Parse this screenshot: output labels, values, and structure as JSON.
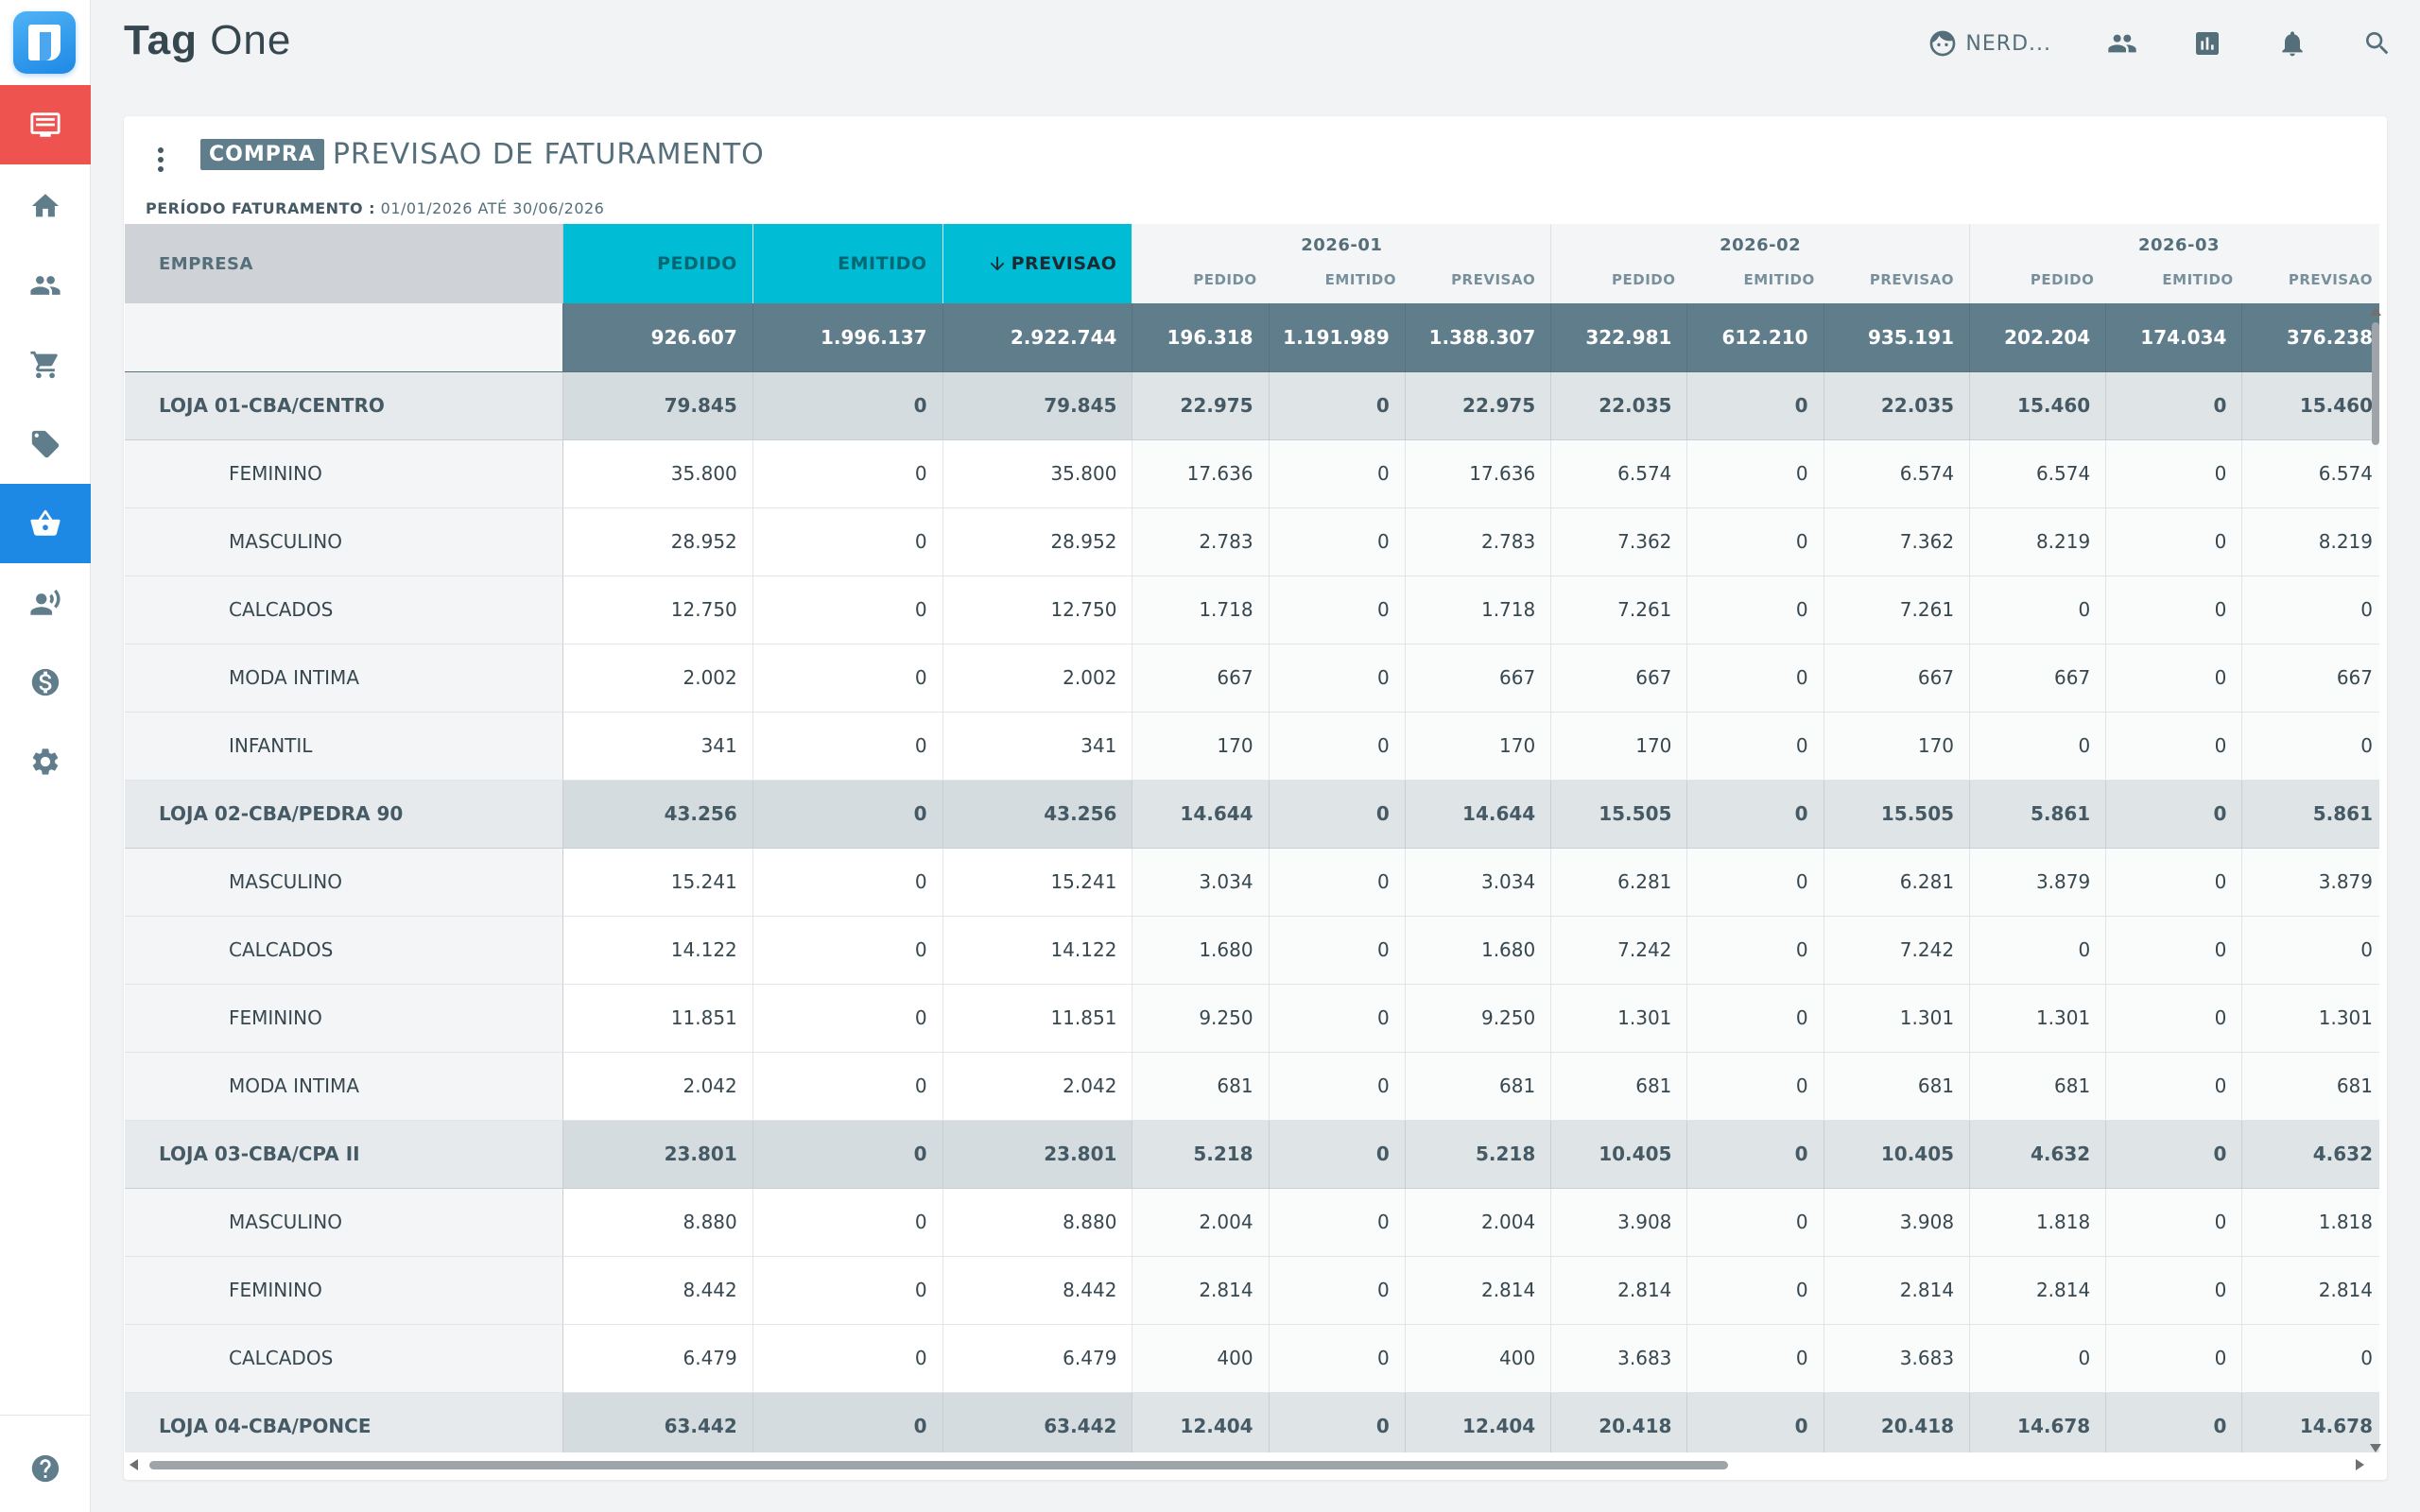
{
  "app": {
    "title_bold": "Tag",
    "title_light": "One"
  },
  "header": {
    "user_label": "NERD...",
    "icons": [
      "user-face-icon",
      "people-icon",
      "chart-icon",
      "bell-icon",
      "search-icon"
    ]
  },
  "sidebar": {
    "items": [
      {
        "icon": "monitor-icon"
      },
      {
        "icon": "home-icon"
      },
      {
        "icon": "people-icon"
      },
      {
        "icon": "cart-icon"
      },
      {
        "icon": "tag-icon"
      },
      {
        "icon": "basket-icon"
      },
      {
        "icon": "speaker-person-icon"
      },
      {
        "icon": "dollar-icon"
      },
      {
        "icon": "gear-icon"
      },
      {
        "icon": "help-icon"
      }
    ]
  },
  "card": {
    "badge": "COMPRA",
    "title": "PREVISAO DE FATURAMENTO",
    "period_label": "PERÍODO FATURAMENTO :",
    "period_value": "01/01/2026 ATÉ 30/06/2026"
  },
  "table": {
    "empresa_header": "EMPRESA",
    "total_headers": [
      "PEDIDO",
      "EMITIDO",
      "PREVISAO"
    ],
    "sub_headers": [
      "PEDIDO",
      "EMITIDO",
      "PREVISAO"
    ],
    "months": [
      "2026-01",
      "2026-02",
      "2026-03"
    ],
    "total_row": [
      "926.607",
      "1.996.137",
      "2.922.744",
      "196.318",
      "1.191.989",
      "1.388.307",
      "322.981",
      "612.210",
      "935.191",
      "202.204",
      "174.034",
      "376.238"
    ],
    "rows": [
      {
        "type": "store",
        "name": "LOJA 01-CBA/CENTRO",
        "values": [
          "79.845",
          "0",
          "79.845",
          "22.975",
          "0",
          "22.975",
          "22.035",
          "0",
          "22.035",
          "15.460",
          "0",
          "15.460"
        ]
      },
      {
        "type": "item",
        "name": "FEMININO",
        "values": [
          "35.800",
          "0",
          "35.800",
          "17.636",
          "0",
          "17.636",
          "6.574",
          "0",
          "6.574",
          "6.574",
          "0",
          "6.574"
        ]
      },
      {
        "type": "item",
        "name": "MASCULINO",
        "values": [
          "28.952",
          "0",
          "28.952",
          "2.783",
          "0",
          "2.783",
          "7.362",
          "0",
          "7.362",
          "8.219",
          "0",
          "8.219"
        ]
      },
      {
        "type": "item",
        "name": "CALCADOS",
        "values": [
          "12.750",
          "0",
          "12.750",
          "1.718",
          "0",
          "1.718",
          "7.261",
          "0",
          "7.261",
          "0",
          "0",
          "0"
        ]
      },
      {
        "type": "item",
        "name": "MODA INTIMA",
        "values": [
          "2.002",
          "0",
          "2.002",
          "667",
          "0",
          "667",
          "667",
          "0",
          "667",
          "667",
          "0",
          "667"
        ]
      },
      {
        "type": "item",
        "name": "INFANTIL",
        "values": [
          "341",
          "0",
          "341",
          "170",
          "0",
          "170",
          "170",
          "0",
          "170",
          "0",
          "0",
          "0"
        ]
      },
      {
        "type": "store",
        "name": "LOJA 02-CBA/PEDRA 90",
        "values": [
          "43.256",
          "0",
          "43.256",
          "14.644",
          "0",
          "14.644",
          "15.505",
          "0",
          "15.505",
          "5.861",
          "0",
          "5.861"
        ]
      },
      {
        "type": "item",
        "name": "MASCULINO",
        "values": [
          "15.241",
          "0",
          "15.241",
          "3.034",
          "0",
          "3.034",
          "6.281",
          "0",
          "6.281",
          "3.879",
          "0",
          "3.879"
        ]
      },
      {
        "type": "item",
        "name": "CALCADOS",
        "values": [
          "14.122",
          "0",
          "14.122",
          "1.680",
          "0",
          "1.680",
          "7.242",
          "0",
          "7.242",
          "0",
          "0",
          "0"
        ]
      },
      {
        "type": "item",
        "name": "FEMININO",
        "values": [
          "11.851",
          "0",
          "11.851",
          "9.250",
          "0",
          "9.250",
          "1.301",
          "0",
          "1.301",
          "1.301",
          "0",
          "1.301"
        ]
      },
      {
        "type": "item",
        "name": "MODA INTIMA",
        "values": [
          "2.042",
          "0",
          "2.042",
          "681",
          "0",
          "681",
          "681",
          "0",
          "681",
          "681",
          "0",
          "681"
        ]
      },
      {
        "type": "store",
        "name": "LOJA 03-CBA/CPA II",
        "values": [
          "23.801",
          "0",
          "23.801",
          "5.218",
          "0",
          "5.218",
          "10.405",
          "0",
          "10.405",
          "4.632",
          "0",
          "4.632"
        ]
      },
      {
        "type": "item",
        "name": "MASCULINO",
        "values": [
          "8.880",
          "0",
          "8.880",
          "2.004",
          "0",
          "2.004",
          "3.908",
          "0",
          "3.908",
          "1.818",
          "0",
          "1.818"
        ]
      },
      {
        "type": "item",
        "name": "FEMININO",
        "values": [
          "8.442",
          "0",
          "8.442",
          "2.814",
          "0",
          "2.814",
          "2.814",
          "0",
          "2.814",
          "2.814",
          "0",
          "2.814"
        ]
      },
      {
        "type": "item",
        "name": "CALCADOS",
        "values": [
          "6.479",
          "0",
          "6.479",
          "400",
          "0",
          "400",
          "3.683",
          "0",
          "3.683",
          "0",
          "0",
          "0"
        ]
      },
      {
        "type": "store",
        "name": "LOJA 04-CBA/PONCE",
        "values": [
          "63.442",
          "0",
          "63.442",
          "12.404",
          "0",
          "12.404",
          "20.418",
          "0",
          "20.418",
          "14.678",
          "0",
          "14.678"
        ]
      }
    ]
  },
  "colors": {
    "accent_active_nav": "#ef5350",
    "accent_selected_nav": "#1e88e5",
    "header_totals": "#00bcd4",
    "total_row": "#607d8b",
    "store_row": "#d5dce0"
  }
}
